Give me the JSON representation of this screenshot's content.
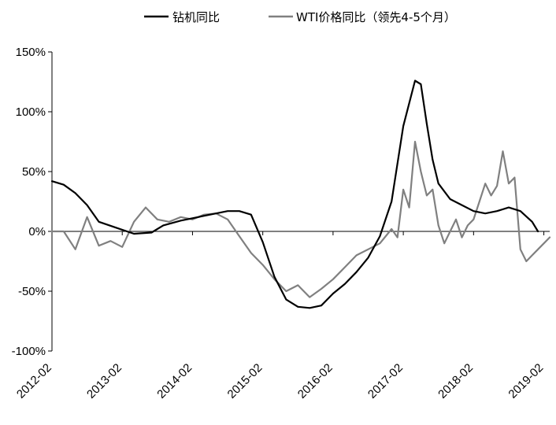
{
  "chart_data": {
    "type": "line",
    "title": "",
    "xlabel": "",
    "ylabel": "",
    "x_unit": "month",
    "x_range": [
      "2012-02",
      "2019-03"
    ],
    "x_ticks": [
      "2012-02",
      "2013-02",
      "2014-02",
      "2015-02",
      "2016-02",
      "2017-02",
      "2018-02",
      "2019-02"
    ],
    "ylim": [
      -100,
      150
    ],
    "y_ticks": [
      -100,
      -50,
      0,
      50,
      100,
      150
    ],
    "y_tick_labels": [
      "-100%",
      "-50%",
      "0%",
      "50%",
      "100%",
      "150%"
    ],
    "grid": false,
    "legend_position": "top-center",
    "series": [
      {
        "name": "钻机同比",
        "color": "#000000",
        "x": [
          "2012-02",
          "2012-04",
          "2012-06",
          "2012-08",
          "2012-10",
          "2013-01",
          "2013-04",
          "2013-07",
          "2013-09",
          "2013-12",
          "2014-02",
          "2014-04",
          "2014-06",
          "2014-08",
          "2014-10",
          "2014-12",
          "2015-02",
          "2015-04",
          "2015-06",
          "2015-08",
          "2015-10",
          "2015-12",
          "2016-02",
          "2016-04",
          "2016-06",
          "2016-08",
          "2016-10",
          "2016-12",
          "2017-02",
          "2017-04",
          "2017-05",
          "2017-06",
          "2017-07",
          "2017-08",
          "2017-10",
          "2017-12",
          "2018-02",
          "2018-04",
          "2018-06",
          "2018-08",
          "2018-10",
          "2018-12",
          "2019-01"
        ],
        "values": [
          42,
          39,
          32,
          22,
          8,
          3,
          -2,
          -1,
          5,
          9,
          11,
          13,
          15,
          17,
          17,
          14,
          -9,
          -38,
          -57,
          -63,
          -64,
          -62,
          -52,
          -44,
          -34,
          -22,
          -4,
          25,
          88,
          126,
          123,
          90,
          60,
          40,
          27,
          22,
          17,
          15,
          17,
          20,
          17,
          8,
          0
        ]
      },
      {
        "name": "WTI价格同比（领先4-5个月）",
        "color": "#808080",
        "x": [
          "2012-02",
          "2012-04",
          "2012-06",
          "2012-08",
          "2012-10",
          "2012-12",
          "2013-02",
          "2013-04",
          "2013-06",
          "2013-08",
          "2013-10",
          "2013-12",
          "2014-02",
          "2014-04",
          "2014-06",
          "2014-08",
          "2014-10",
          "2014-12",
          "2015-02",
          "2015-04",
          "2015-06",
          "2015-08",
          "2015-10",
          "2015-12",
          "2016-02",
          "2016-04",
          "2016-06",
          "2016-08",
          "2016-10",
          "2016-12",
          "2017-01",
          "2017-02",
          "2017-03",
          "2017-04",
          "2017-05",
          "2017-06",
          "2017-07",
          "2017-08",
          "2017-09",
          "2017-10",
          "2017-11",
          "2017-12",
          "2018-01",
          "2018-02",
          "2018-03",
          "2018-04",
          "2018-05",
          "2018-06",
          "2018-07",
          "2018-08",
          "2018-09",
          "2018-10",
          "2018-11",
          "2018-12",
          "2019-01",
          "2019-02",
          "2019-03"
        ],
        "values": [
          0,
          0,
          -15,
          12,
          -12,
          -8,
          -13,
          8,
          20,
          10,
          8,
          12,
          10,
          14,
          15,
          10,
          -4,
          -18,
          -28,
          -40,
          -50,
          -45,
          -55,
          -48,
          -40,
          -30,
          -20,
          -15,
          -10,
          2,
          -5,
          35,
          20,
          75,
          50,
          30,
          35,
          5,
          -10,
          0,
          10,
          -5,
          5,
          10,
          25,
          40,
          30,
          38,
          67,
          40,
          45,
          -15,
          -25,
          -20,
          -15,
          -10,
          -5
        ]
      }
    ]
  },
  "legend": {
    "series1_label": "钻机同比",
    "series2_label": "WTI价格同比（领先4-5个月）"
  }
}
